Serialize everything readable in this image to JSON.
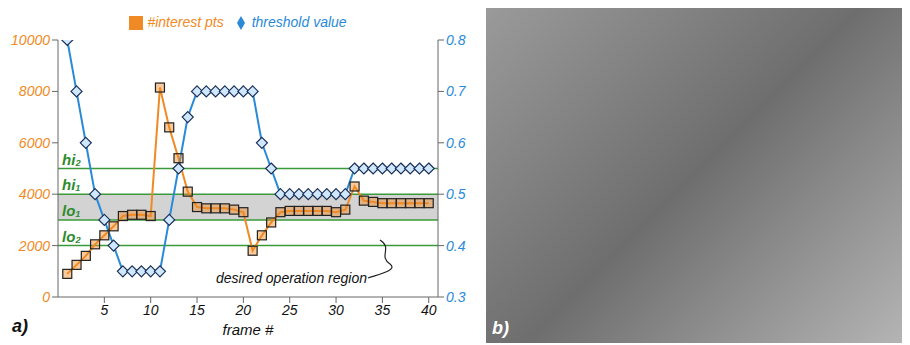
{
  "chart_data": {
    "type": "line",
    "x_label": "frame #",
    "x": [
      1,
      2,
      3,
      4,
      5,
      6,
      7,
      8,
      9,
      10,
      11,
      12,
      13,
      14,
      15,
      16,
      17,
      18,
      19,
      20,
      21,
      22,
      23,
      24,
      25,
      26,
      27,
      28,
      29,
      30,
      31,
      32,
      33,
      34,
      35,
      36,
      37,
      38,
      39,
      40
    ],
    "xlim": [
      0,
      41
    ],
    "xticks": [
      5,
      10,
      15,
      20,
      25,
      30,
      35,
      40
    ],
    "ylim": [
      0,
      10000
    ],
    "yticks": [
      0,
      2000,
      4000,
      6000,
      8000,
      10000
    ],
    "y2lim": [
      0.3,
      0.8
    ],
    "y2ticks": [
      0.3,
      0.4,
      0.5,
      0.6,
      0.7,
      0.8
    ],
    "series": [
      {
        "name": "#interest pts",
        "color": "#f08a24",
        "marker": "square",
        "values": [
          900,
          1250,
          1600,
          2050,
          2400,
          2750,
          3150,
          3200,
          3200,
          3150,
          8150,
          6600,
          5400,
          4100,
          3500,
          3450,
          3450,
          3450,
          3400,
          3300,
          1800,
          2400,
          2900,
          3300,
          3350,
          3350,
          3350,
          3350,
          3350,
          3300,
          3400,
          4300,
          3750,
          3700,
          3650,
          3650,
          3650,
          3650,
          3650,
          3650
        ]
      },
      {
        "name": "threshold value",
        "color": "#2a8ad8",
        "marker": "diamond",
        "axis": "y2",
        "values": [
          0.8,
          0.7,
          0.6,
          0.5,
          0.45,
          0.4,
          0.35,
          0.35,
          0.35,
          0.35,
          0.35,
          0.45,
          0.55,
          0.65,
          0.7,
          0.7,
          0.7,
          0.7,
          0.7,
          0.7,
          0.7,
          0.6,
          0.55,
          0.5,
          0.5,
          0.5,
          0.5,
          0.5,
          0.5,
          0.5,
          0.5,
          0.55,
          0.55,
          0.55,
          0.55,
          0.55,
          0.55,
          0.55,
          0.55,
          0.55
        ]
      }
    ],
    "reference_lines": [
      {
        "value": 5000,
        "label": "hi₂"
      },
      {
        "value": 4000,
        "label": "hi₁"
      },
      {
        "value": 3000,
        "label": "lo₁"
      },
      {
        "value": 2000,
        "label": "lo₂"
      }
    ],
    "band": [
      3000,
      4000
    ],
    "annotation": "desired operation region",
    "panel_labels": [
      "a)",
      "b)"
    ],
    "grid": false,
    "legend": "top"
  }
}
